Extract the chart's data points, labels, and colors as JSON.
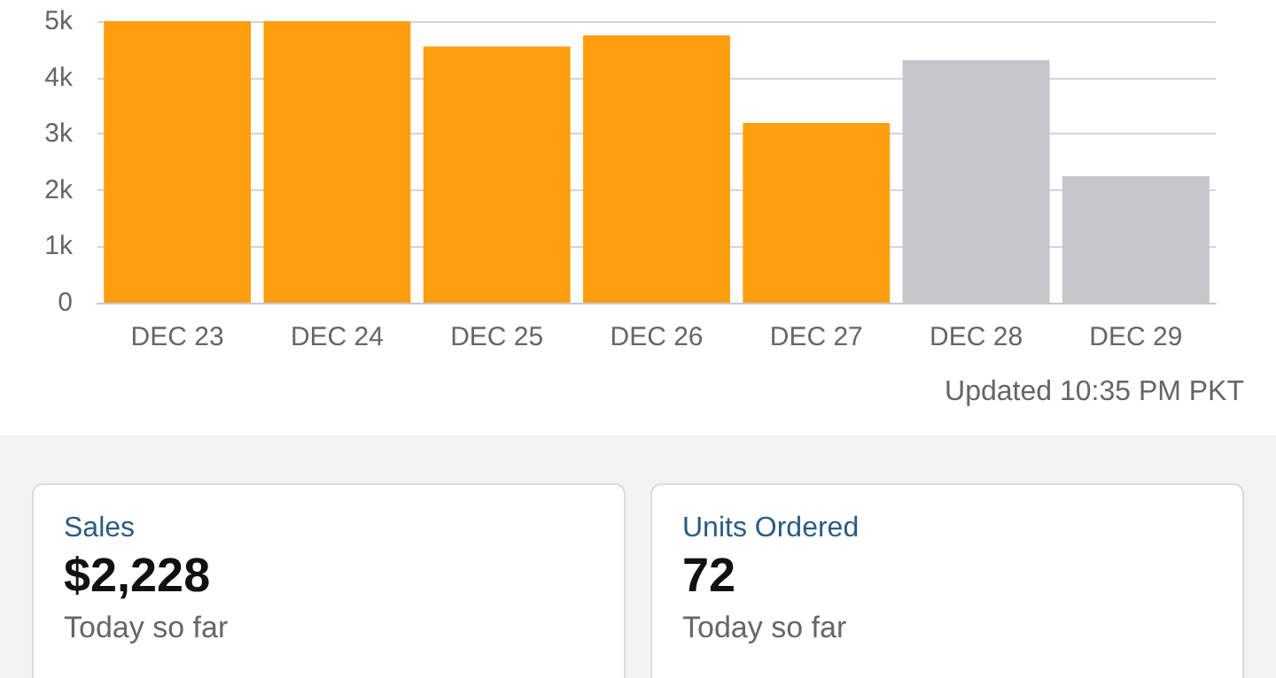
{
  "chart_data": {
    "type": "bar",
    "categories": [
      "DEC 23",
      "DEC 24",
      "DEC 25",
      "DEC 26",
      "DEC 27",
      "DEC 28",
      "DEC 29"
    ],
    "values": [
      5000,
      5000,
      4550,
      4750,
      3190,
      4310,
      2250
    ],
    "colors": [
      "#ff9f10",
      "#ff9f10",
      "#ff9f10",
      "#ff9f10",
      "#ff9f10",
      "#c5c5cb",
      "#c5c5cb"
    ],
    "ylim": [
      0,
      5000
    ],
    "yticks": [
      0,
      {
        "value": 1000,
        "label": "1k"
      },
      {
        "value": 2000,
        "label": "2k"
      },
      {
        "value": 3000,
        "label": "3k"
      },
      {
        "value": 4000,
        "label": "4k"
      },
      {
        "value": 5000,
        "label": "5k"
      }
    ],
    "grid": "y",
    "annotations": [
      "Updated 10:35 PM PKT",
      "Sales",
      "$2,228",
      "Today so far",
      "Units Ordered",
      "72",
      "Today so far"
    ]
  }
}
